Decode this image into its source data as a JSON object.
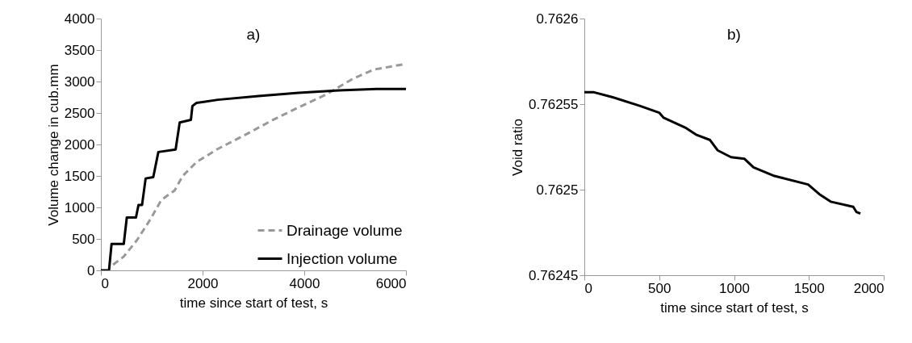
{
  "chart_data": [
    {
      "type": "line",
      "xlabel": "time since start of test, s",
      "ylabel": "Volume change in cub.mm",
      "annotations": [
        "a)"
      ],
      "xlim": [
        0,
        6000
      ],
      "xticks": [
        0,
        2000,
        4000,
        6000
      ],
      "ylim": [
        0,
        4000
      ],
      "yticks": [
        0,
        500,
        1000,
        1500,
        2000,
        2500,
        3000,
        3500,
        4000
      ],
      "grid": false,
      "legend": "bottom right",
      "marker": "none",
      "series": [
        {
          "name": "Drainage volume",
          "color": "#999999",
          "line_style": "dashed",
          "x": [
            240,
            450,
            710,
            980,
            1190,
            1450,
            1610,
            1880,
            2300,
            2830,
            3360,
            3890,
            4420,
            4950,
            5370,
            6000
          ],
          "values": [
            90,
            220,
            480,
            820,
            1120,
            1270,
            1500,
            1720,
            1930,
            2150,
            2380,
            2590,
            2790,
            3040,
            3190,
            3280
          ]
        },
        {
          "name": "Injection volume",
          "color": "#000000",
          "line_style": "solid",
          "x": [
            0,
            160,
            210,
            450,
            510,
            690,
            740,
            810,
            880,
            1030,
            1130,
            1470,
            1550,
            1770,
            1800,
            1880,
            2300,
            3100,
            3890,
            4680,
            5420,
            6000
          ],
          "values": [
            0,
            0,
            420,
            420,
            840,
            840,
            1040,
            1040,
            1460,
            1480,
            1880,
            1920,
            2350,
            2390,
            2610,
            2660,
            2710,
            2770,
            2820,
            2860,
            2880,
            2880
          ]
        }
      ]
    },
    {
      "type": "line",
      "xlabel": "time since start of test, s",
      "ylabel": "Void ratio",
      "annotations": [
        "b)"
      ],
      "xlim": [
        0,
        2000
      ],
      "xticks": [
        0,
        500,
        1000,
        1500,
        2000
      ],
      "ylim": [
        0.76245,
        0.7626
      ],
      "yticks": [
        0.76245,
        0.7625,
        0.76255,
        0.7626
      ],
      "grid": false,
      "marker": "none",
      "series": [
        {
          "color": "#000000",
          "line_style": "solid",
          "x": [
            0,
            60,
            190,
            370,
            500,
            530,
            680,
            750,
            840,
            890,
            980,
            1070,
            1130,
            1270,
            1495,
            1575,
            1645,
            1796,
            1817,
            1844
          ],
          "values": [
            0.762557,
            0.762557,
            0.762554,
            0.762549,
            0.762545,
            0.762542,
            0.762536,
            0.762532,
            0.762529,
            0.762523,
            0.762519,
            0.762518,
            0.762513,
            0.762508,
            0.762503,
            0.762497,
            0.762493,
            0.76249,
            0.762487,
            0.762486
          ]
        }
      ]
    }
  ]
}
